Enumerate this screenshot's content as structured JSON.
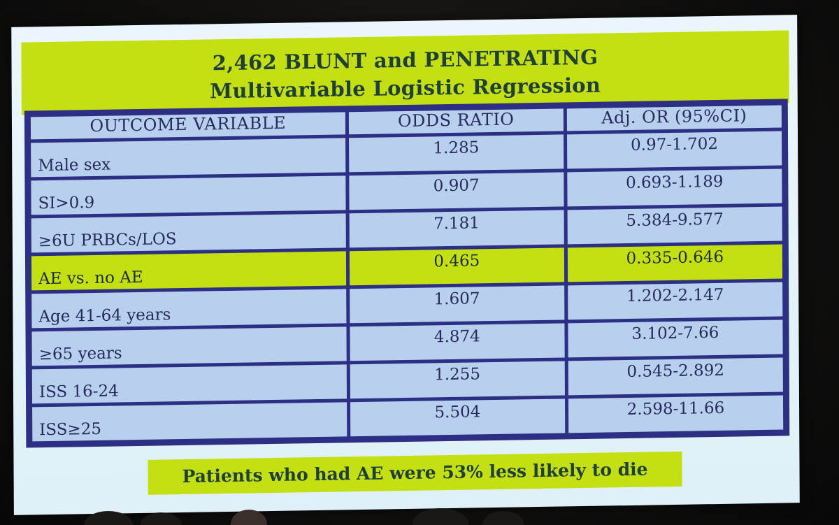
{
  "title": {
    "line1": "2,462 BLUNT and PENETRATING",
    "line2": "Multivariable Logistic Regression"
  },
  "table": {
    "headers": [
      "OUTCOME VARIABLE",
      "ODDS RATIO",
      "Adj. OR (95%CI)"
    ],
    "rows": [
      {
        "variable": "Male sex",
        "odds_ratio": "1.285",
        "ci": "0.97-1.702",
        "highlight": false
      },
      {
        "variable": "SI>0.9",
        "odds_ratio": "0.907",
        "ci": "0.693-1.189",
        "highlight": false
      },
      {
        "variable": "≥6U PRBCs/LOS",
        "odds_ratio": "7.181",
        "ci": "5.384-9.577",
        "highlight": false
      },
      {
        "variable": "AE vs. no AE",
        "odds_ratio": "0.465",
        "ci": "0.335-0.646",
        "highlight": true
      },
      {
        "variable": "Age 41-64 years",
        "odds_ratio": "1.607",
        "ci": "1.202-2.147",
        "highlight": false
      },
      {
        "variable": "≥65 years",
        "odds_ratio": "4.874",
        "ci": "3.102-7.66",
        "highlight": false
      },
      {
        "variable": "ISS 16-24",
        "odds_ratio": "1.255",
        "ci": "0.545-2.892",
        "highlight": false
      },
      {
        "variable": "ISS≥25",
        "odds_ratio": "5.504",
        "ci": "2.598-11.66",
        "highlight": false
      }
    ]
  },
  "footer": {
    "text": "Patients who had AE were 53% less likely to die"
  },
  "colors": {
    "highlight": "#c4e012",
    "cell": "#b8d0ee",
    "border": "#2c2f83",
    "screen": "#e4f3fa"
  }
}
